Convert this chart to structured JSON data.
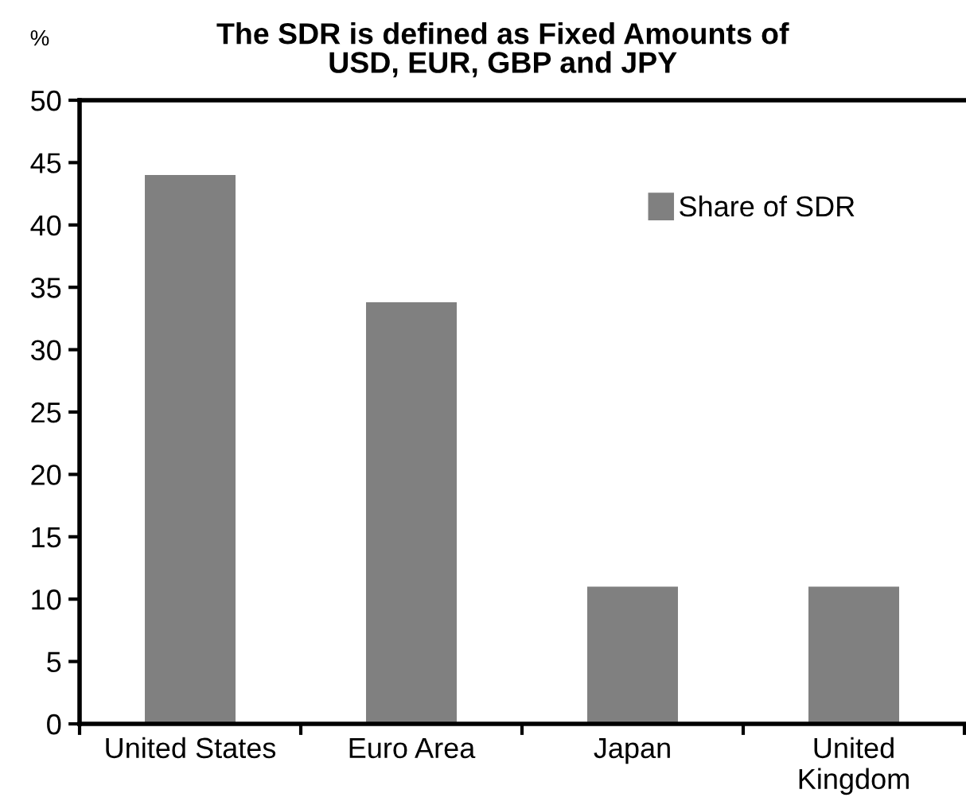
{
  "chart_data": {
    "type": "bar",
    "title": "The SDR is defined as Fixed Amounts of\nUSD, EUR, GBP and JPY",
    "ylabel": "%",
    "categories": [
      "United States",
      "Euro Area",
      "Japan",
      "United\nKingdom"
    ],
    "series": [
      {
        "name": "Share of SDR",
        "color": "#808080",
        "values": [
          44,
          33.8,
          11,
          11
        ]
      }
    ],
    "ylim": [
      0,
      50
    ],
    "yticks": [
      0,
      5,
      10,
      15,
      20,
      25,
      30,
      35,
      40,
      45,
      50
    ],
    "grid": false,
    "legend": "top right"
  }
}
